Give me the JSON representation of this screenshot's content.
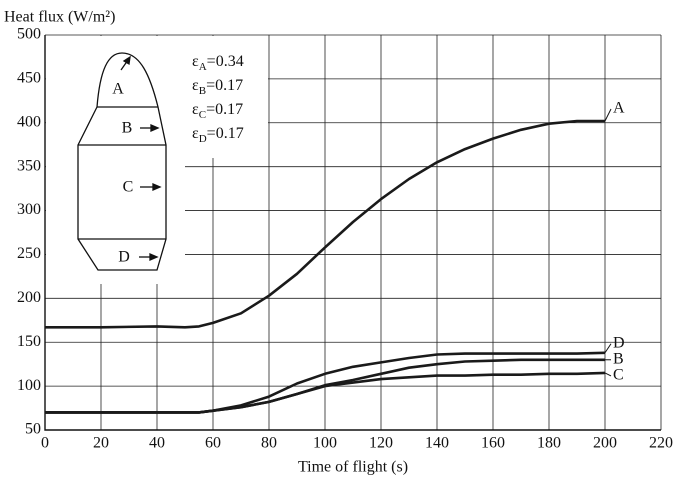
{
  "chart_data": {
    "type": "line",
    "ylabel": "Heat flux (W/m²)",
    "xlabel": "Time of flight (s)",
    "x": [
      0,
      20,
      40,
      50,
      55,
      60,
      70,
      80,
      90,
      100,
      110,
      120,
      130,
      140,
      150,
      160,
      170,
      180,
      190,
      200
    ],
    "series": [
      {
        "name": "A",
        "color": "#1a1a1a",
        "values": [
          167,
          167,
          168,
          167,
          168,
          172,
          183,
          203,
          228,
          258,
          287,
          313,
          336,
          355,
          370,
          382,
          392,
          399,
          402,
          402
        ]
      },
      {
        "name": "D",
        "color": "#1a1a1a",
        "values": [
          70,
          70,
          70,
          70,
          70,
          72,
          78,
          88,
          103,
          114,
          122,
          127,
          132,
          136,
          137,
          137,
          137,
          137,
          137,
          138
        ]
      },
      {
        "name": "B",
        "color": "#1a1a1a",
        "values": [
          70,
          70,
          70,
          70,
          70,
          72,
          76,
          82,
          91,
          101,
          107,
          114,
          121,
          125,
          128,
          129,
          130,
          130,
          130,
          130
        ]
      },
      {
        "name": "C",
        "color": "#1a1a1a",
        "values": [
          70,
          70,
          70,
          70,
          70,
          72,
          76,
          82,
          91,
          100,
          104,
          108,
          110,
          112,
          112,
          113,
          113,
          114,
          114,
          115
        ]
      }
    ],
    "xlim": [
      0,
      220
    ],
    "xticks": [
      0,
      20,
      40,
      60,
      80,
      100,
      120,
      140,
      160,
      180,
      200,
      220
    ],
    "ylim": [
      50,
      500
    ],
    "yticks": [
      50,
      100,
      150,
      200,
      250,
      300,
      350,
      400,
      450,
      500
    ],
    "grid": true,
    "annotations": [
      {
        "symbol": "ε",
        "sub": "A",
        "text": "=0.34"
      },
      {
        "symbol": "ε",
        "sub": "B",
        "text": "=0.17"
      },
      {
        "symbol": "ε",
        "sub": "C",
        "text": "=0.17"
      },
      {
        "symbol": "ε",
        "sub": "D",
        "text": "=0.17"
      }
    ],
    "inset_labels": [
      "A",
      "B",
      "C",
      "D"
    ]
  }
}
